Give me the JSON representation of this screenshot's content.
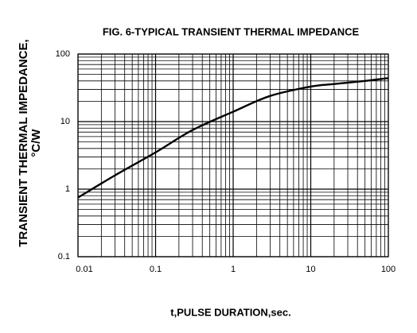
{
  "chart_data": {
    "type": "line",
    "title": "FIG. 6-TYPICAL TRANSIENT THERMAL IMPEDANCE",
    "xlabel": "t,PULSE DURATION,sec.",
    "ylabel": [
      "TRANSIENT THERMAL IMPEDANCE,",
      "°C/W"
    ],
    "x": [
      0.01,
      0.03,
      0.1,
      0.3,
      1,
      3,
      10,
      20,
      50,
      100
    ],
    "values": [
      0.75,
      1.6,
      3.5,
      7.5,
      14,
      24,
      33,
      36,
      40,
      44
    ],
    "color": "#000000",
    "xlog": true,
    "ylog": true,
    "xlim": [
      0.01,
      100
    ],
    "ylim": [
      0.1,
      100
    ],
    "xticks": [
      0.01,
      0.1,
      1,
      10,
      100
    ],
    "yticks": [
      0.1,
      1,
      10,
      100
    ],
    "grid": true,
    "minor_grid": true
  }
}
